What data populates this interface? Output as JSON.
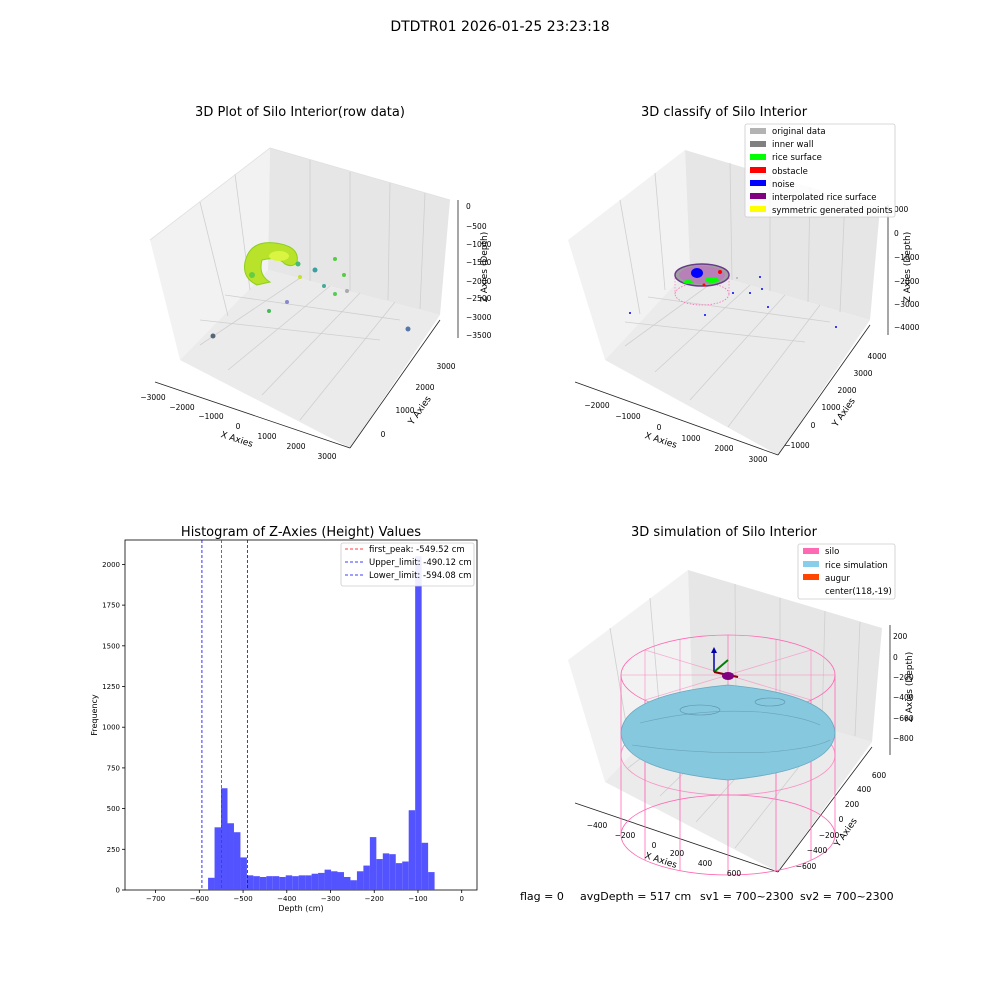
{
  "figure": {
    "suptitle": "DTDTR01 2026-01-25 23:23:18",
    "status_line": {
      "flag": "flag = 0",
      "avg_depth": "avgDepth = 517 cm",
      "sv1": "sv1 = 700~2300",
      "sv2": "sv2 = 700~2300"
    }
  },
  "colors": {
    "pane_left": "#f2f2f2",
    "pane_right": "#e6e6e6",
    "pane_floor": "#ebebeb",
    "grid": "#cfcfcf",
    "hist_bar": "#4a4aff",
    "rice": "#86c8de",
    "silo": "#ff69b4",
    "augur": "#ff4500"
  },
  "panels": {
    "p1": {
      "title": "3D Plot of Silo Interior(row data)",
      "xlabel": "X Axies",
      "ylabel": "Y Axies",
      "zlabel": "Z Axies (Depth)",
      "xticks": [
        "−3000",
        "−2000",
        "−1000",
        "0",
        "1000",
        "2000",
        "3000"
      ],
      "yticks": [
        "0",
        "1000",
        "2000",
        "3000"
      ],
      "zticks": [
        "0",
        "−500",
        "−1000",
        "−1500",
        "−2000",
        "−2500",
        "−3000",
        "−3500"
      ]
    },
    "p2": {
      "title": "3D classify of Silo Interior",
      "xlabel": "X Axies",
      "ylabel": "Y Axies",
      "zlabel": "Z Axies (Depth)",
      "xticks": [
        "−2000",
        "−1000",
        "0",
        "1000",
        "2000",
        "3000"
      ],
      "yticks": [
        "−1000",
        "0",
        "1000",
        "2000",
        "3000",
        "4000"
      ],
      "zticks": [
        "000",
        "0",
        "−1000",
        "−2000",
        "−3000",
        "−4000"
      ],
      "legend": [
        {
          "label": "original data",
          "color": "#b3b3b3"
        },
        {
          "label": "inner wall",
          "color": "#808080"
        },
        {
          "label": "rice surface",
          "color": "#00ff00"
        },
        {
          "label": "obstacle",
          "color": "#ff0000"
        },
        {
          "label": "noise",
          "color": "#0000ff"
        },
        {
          "label": "interpolated rice surface",
          "color": "#800080"
        },
        {
          "label": "symmetric generated points",
          "color": "#ffff00"
        }
      ]
    },
    "p4": {
      "title": "3D simulation of Silo Interior",
      "xlabel": "X Axies",
      "ylabel": "Y Axies",
      "zlabel": "Z Axies (Depth)",
      "xticks": [
        "−400",
        "−200",
        "0",
        "200",
        "400",
        "600"
      ],
      "yticks": [
        "−600",
        "−400",
        "−200",
        "0",
        "200",
        "400",
        "600"
      ],
      "zticks": [
        "200",
        "0",
        "−200",
        "−400",
        "−600",
        "−800"
      ],
      "legend": [
        {
          "label": "silo",
          "color": "#ff69b4"
        },
        {
          "label": "rice simulation",
          "color": "#87ceeb"
        },
        {
          "label": "augur",
          "color": "#ff4500"
        },
        {
          "label": "center(118,-19)",
          "color": ""
        }
      ]
    }
  },
  "chart_data": {
    "type": "bar",
    "title": "Histogram of Z-Axies (Height) Values",
    "xlabel": "Depth (cm)",
    "ylabel": "Frequency",
    "xlim": [
      -770,
      35
    ],
    "ylim": [
      0,
      2150
    ],
    "xticks": [
      -700,
      -600,
      -500,
      -400,
      -300,
      -200,
      -100,
      0
    ],
    "xtick_labels": [
      "−700",
      "−600",
      "−500",
      "−400",
      "−300",
      "−200",
      "−100",
      "0"
    ],
    "yticks": [
      0,
      250,
      500,
      750,
      1000,
      1250,
      1500,
      1750,
      2000
    ],
    "bin_start": -580,
    "bin_width": 14.8,
    "values": [
      75,
      385,
      625,
      410,
      355,
      200,
      90,
      85,
      80,
      85,
      85,
      80,
      90,
      85,
      90,
      90,
      100,
      105,
      125,
      115,
      110,
      80,
      60,
      115,
      150,
      325,
      190,
      225,
      220,
      165,
      175,
      490,
      2050,
      290,
      110
    ],
    "vlines": [
      {
        "label": "first_peak: -549.52 cm",
        "x": -549.52,
        "color": "#ff0000"
      },
      {
        "label": "Upper_limit: -490.12 cm",
        "x": -490.12,
        "color": "#0000ff"
      },
      {
        "label": "Lower_limit: -594.08 cm",
        "x": -594.08,
        "color": "#0000ff"
      }
    ],
    "grid": false,
    "legend_position": "top-right"
  }
}
